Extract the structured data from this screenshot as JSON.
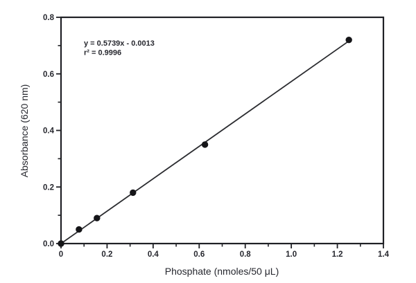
{
  "chart_data": {
    "type": "scatter",
    "title": "",
    "xlabel": "Phosphate (nmoles/50 μL)",
    "ylabel": "Absorbance (620 nm)",
    "xlim": [
      0,
      1.4
    ],
    "ylim": [
      0,
      0.8
    ],
    "grid": false,
    "legend": null,
    "frame": "full-box",
    "x_ticks": {
      "major": [
        {
          "v": 0.0,
          "label": "0"
        },
        {
          "v": 0.2,
          "label": "0.2"
        },
        {
          "v": 0.4,
          "label": "0.4"
        },
        {
          "v": 0.6,
          "label": "0.6"
        },
        {
          "v": 0.8,
          "label": "0.8"
        },
        {
          "v": 1.0,
          "label": "1.0"
        },
        {
          "v": 1.2,
          "label": "1.2"
        },
        {
          "v": 1.4,
          "label": "1.4"
        }
      ],
      "minor": [
        0.1,
        0.3,
        0.5,
        0.7,
        0.9,
        1.1,
        1.3
      ]
    },
    "y_ticks": {
      "major": [
        {
          "v": 0.0,
          "label": "0.0"
        },
        {
          "v": 0.2,
          "label": "0.2"
        },
        {
          "v": 0.4,
          "label": "0.4"
        },
        {
          "v": 0.6,
          "label": "0.6"
        },
        {
          "v": 0.8,
          "label": "0.8"
        }
      ],
      "minor": [
        0.1,
        0.3,
        0.5,
        0.7
      ]
    },
    "points": [
      {
        "x": 0.0,
        "y": 0.0
      },
      {
        "x": 0.078,
        "y": 0.05
      },
      {
        "x": 0.156,
        "y": 0.09
      },
      {
        "x": 0.3125,
        "y": 0.18
      },
      {
        "x": 0.625,
        "y": 0.35
      },
      {
        "x": 1.25,
        "y": 0.72
      }
    ],
    "fit": {
      "slope": 0.5739,
      "intercept": -0.0013,
      "x_range": [
        0.0,
        1.25
      ]
    },
    "annotation": {
      "equation": "y = 0.5739x - 0.0013",
      "r_squared": "r² = 0.9996"
    },
    "colors": {
      "axis": "#1f2025",
      "line": "#2b2c30",
      "marker": "#151518",
      "text": "#26272e",
      "background": "#ffffff"
    }
  }
}
